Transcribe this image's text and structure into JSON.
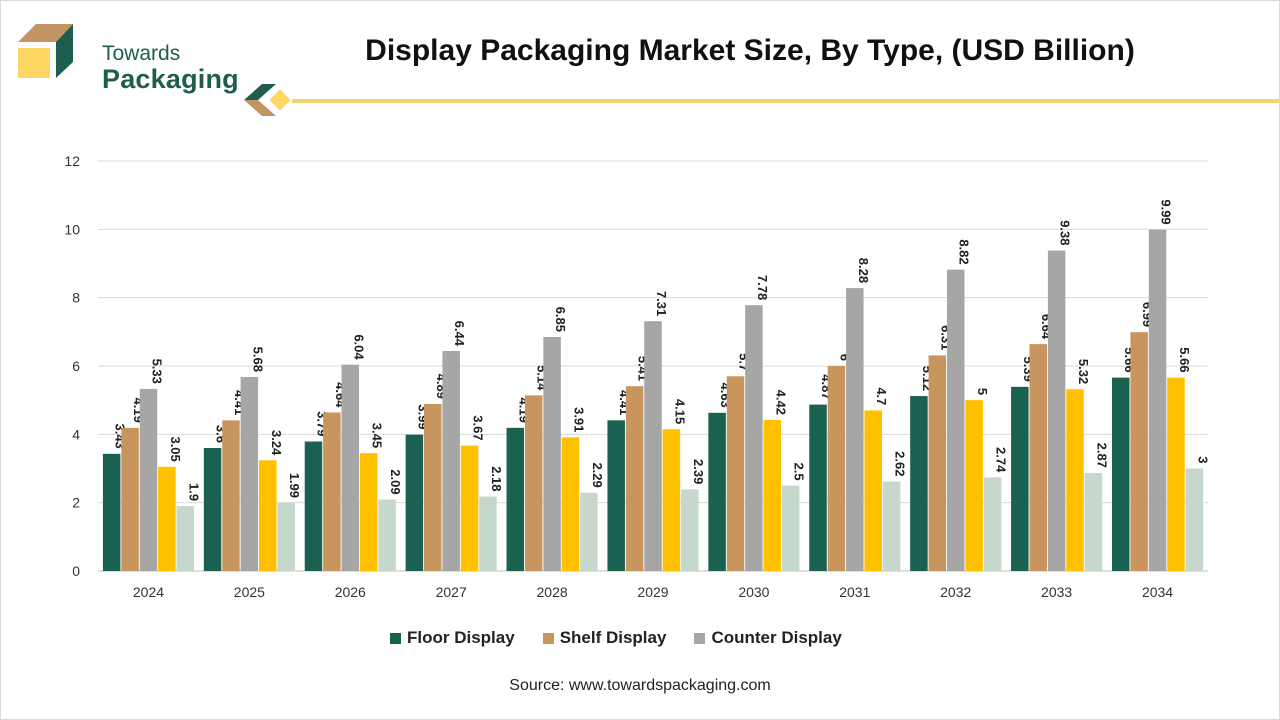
{
  "brand": {
    "line1": "Towards",
    "line2": "Packaging",
    "colors": {
      "green": "#1e5e4f",
      "tan": "#c39463",
      "yellow": "#fdd663"
    }
  },
  "source": "Source: www.towardspackaging.com",
  "chart_data": {
    "type": "bar",
    "title": "Display Packaging Market Size, By Type, (USD Billion)",
    "categories": [
      "2024",
      "2025",
      "2026",
      "2027",
      "2028",
      "2029",
      "2030",
      "2031",
      "2032",
      "2033",
      "2034"
    ],
    "ylim": [
      0,
      12
    ],
    "yticks": [
      0,
      2,
      4,
      6,
      8,
      10,
      12
    ],
    "grid": true,
    "legend_position": "bottom",
    "series": [
      {
        "name": "Floor Display",
        "color": "#1b6152",
        "show_in_legend": true,
        "values": [
          3.43,
          3.6,
          3.79,
          3.99,
          4.19,
          4.41,
          4.63,
          4.87,
          5.12,
          5.39,
          5.66
        ]
      },
      {
        "name": "Shelf Display",
        "color": "#c9955f",
        "show_in_legend": true,
        "values": [
          4.19,
          4.41,
          4.64,
          4.89,
          5.14,
          5.41,
          5.7,
          6,
          6.31,
          6.64,
          6.99
        ]
      },
      {
        "name": "Counter Display",
        "color": "#a6a6a6",
        "show_in_legend": true,
        "values": [
          5.33,
          5.68,
          6.04,
          6.44,
          6.85,
          7.31,
          7.78,
          8.28,
          8.82,
          9.38,
          9.99
        ]
      },
      {
        "name": "",
        "color": "#ffc000",
        "show_in_legend": false,
        "values": [
          3.05,
          3.24,
          3.45,
          3.67,
          3.91,
          4.15,
          4.42,
          4.7,
          5,
          5.32,
          5.66
        ]
      },
      {
        "name": "",
        "color": "#c5d8cb",
        "show_in_legend": false,
        "values": [
          1.9,
          1.99,
          2.09,
          2.18,
          2.29,
          2.39,
          2.5,
          2.62,
          2.74,
          2.87,
          3
        ]
      }
    ]
  }
}
